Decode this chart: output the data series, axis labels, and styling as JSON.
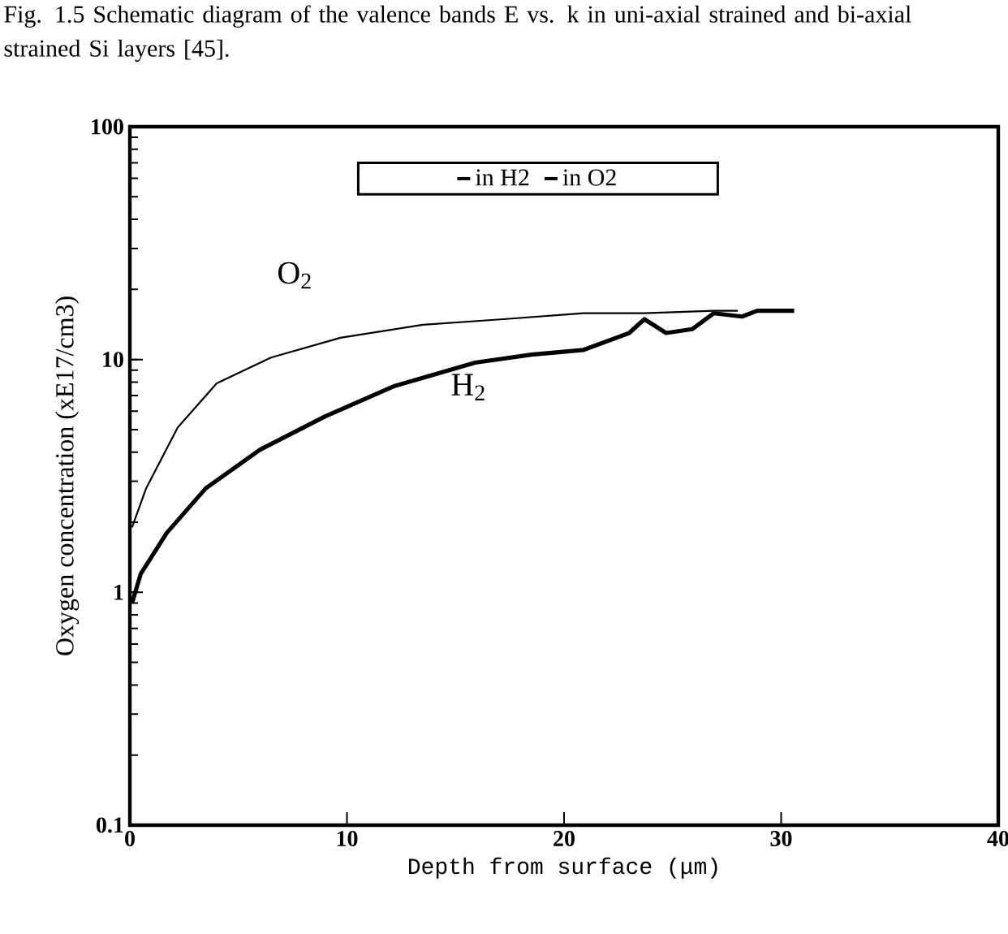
{
  "chart_data": {
    "type": "line",
    "title": "Fig. 1.5 Schematic diagram of the valence bands E vs. k in uni-axial strained and bi-axial strained Si layers [45].",
    "xlabel": "Depth from surface (μm)",
    "ylabel": "Oxygen concentration (xE17/cm3)",
    "log": "y",
    "legend": "top",
    "xlim": [
      0,
      40
    ],
    "xticks": [
      0,
      10,
      20,
      30,
      40
    ],
    "ylim": [
      0.1,
      100
    ],
    "yticks": [
      0.1,
      1,
      10,
      100
    ],
    "annotations": [
      "O$_{2}$",
      "H$_{2}$"
    ],
    "series": [
      {
        "name": "in H2",
        "color": "#000000",
        "x": [
          0.1,
          0.5,
          1.7,
          3.5,
          6.0,
          9.0,
          12.2,
          15.9,
          18.5,
          20.9,
          23.0,
          23.7,
          24.7,
          25.9,
          26.9,
          28.2,
          28.9,
          30.6
        ],
        "values": [
          0.9,
          1.2,
          1.8,
          2.8,
          4.1,
          5.7,
          7.7,
          9.7,
          10.5,
          11.0,
          13.0,
          14.9,
          13.0,
          13.5,
          15.8,
          15.3,
          16.2,
          16.2
        ]
      },
      {
        "name": "in O2",
        "color": "#000000",
        "x": [
          0.1,
          0.75,
          2.2,
          4.0,
          6.5,
          9.7,
          13.5,
          17.2,
          20.9,
          23.7,
          26.9,
          28.0
        ],
        "values": [
          1.9,
          2.8,
          5.1,
          7.9,
          10.2,
          12.4,
          14.1,
          14.9,
          15.8,
          15.8,
          16.2,
          16.2
        ]
      }
    ]
  }
}
